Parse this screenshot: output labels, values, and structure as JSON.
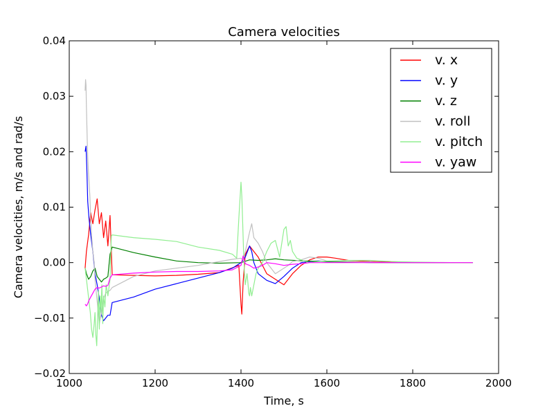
{
  "chart_data": {
    "type": "line",
    "title": "Camera velocities",
    "xlabel": "Time, s",
    "ylabel": "Camera velocities, m/s and rad/s",
    "xlim": [
      1000,
      2000
    ],
    "ylim": [
      -0.02,
      0.04
    ],
    "xticks": [
      1000,
      1200,
      1400,
      1600,
      1800,
      2000
    ],
    "xtick_labels": [
      "1000",
      "1200",
      "1400",
      "1600",
      "1800",
      "2000"
    ],
    "yticks": [
      -0.02,
      -0.01,
      0.0,
      0.01,
      0.02,
      0.03,
      0.04
    ],
    "ytick_labels": [
      "−0.02",
      "−0.01",
      "0.00",
      "0.01",
      "0.02",
      "0.03",
      "0.04"
    ],
    "grid": false,
    "legend_position": "top-right",
    "series": [
      {
        "name": "v. x",
        "color": "#ff0000",
        "x": [
          1037,
          1040,
          1045,
          1050,
          1055,
          1060,
          1065,
          1070,
          1075,
          1080,
          1085,
          1090,
          1095,
          1100,
          1150,
          1200,
          1250,
          1300,
          1350,
          1395,
          1400,
          1402,
          1405,
          1410,
          1420,
          1430,
          1440,
          1460,
          1480,
          1500,
          1520,
          1540,
          1560,
          1580,
          1600,
          1620,
          1650,
          1700,
          1750,
          1800,
          1850,
          1900,
          1940
        ],
        "y": [
          -0.001,
          0.002,
          0.005,
          0.009,
          0.007,
          0.0095,
          0.0115,
          0.007,
          0.009,
          0.0045,
          0.0075,
          0.003,
          0.0085,
          -0.0022,
          -0.0023,
          -0.0024,
          -0.0023,
          -0.0021,
          -0.0018,
          -0.0005,
          -0.0075,
          -0.0093,
          -0.0035,
          0.0015,
          0.003,
          0.002,
          0.001,
          -0.002,
          -0.003,
          -0.004,
          -0.002,
          -0.0005,
          0.0005,
          0.001,
          0.001,
          0.0008,
          0.0004,
          0.0002,
          0.0001,
          0.0,
          0.0,
          0.0,
          0.0
        ]
      },
      {
        "name": "v. y",
        "color": "#0000ff",
        "x": [
          1037,
          1039,
          1041,
          1043,
          1046,
          1050,
          1055,
          1060,
          1065,
          1070,
          1075,
          1080,
          1085,
          1090,
          1095,
          1100,
          1150,
          1200,
          1250,
          1300,
          1350,
          1380,
          1400,
          1410,
          1420,
          1425,
          1430,
          1440,
          1460,
          1480,
          1500,
          1520,
          1540,
          1560,
          1580,
          1600,
          1650,
          1700,
          1750,
          1800,
          1850,
          1900,
          1940
        ],
        "y": [
          0.02,
          0.021,
          0.017,
          0.011,
          0.008,
          0.005,
          0.002,
          -0.002,
          -0.004,
          -0.0065,
          -0.0095,
          -0.0105,
          -0.01,
          -0.0095,
          -0.0095,
          -0.0072,
          -0.0062,
          -0.0048,
          -0.0038,
          -0.0028,
          -0.0018,
          -0.001,
          0.0,
          0.001,
          0.003,
          0.002,
          0.0,
          -0.002,
          -0.0032,
          -0.0038,
          -0.0025,
          -0.001,
          0.0,
          0.0002,
          0.0003,
          0.0002,
          0.0001,
          0.0001,
          0.0,
          0.0,
          0.0,
          0.0,
          0.0
        ]
      },
      {
        "name": "v. z",
        "color": "#008000",
        "x": [
          1037,
          1040,
          1045,
          1050,
          1055,
          1060,
          1065,
          1070,
          1075,
          1080,
          1085,
          1090,
          1095,
          1100,
          1150,
          1200,
          1250,
          1300,
          1350,
          1400,
          1420,
          1440,
          1460,
          1480,
          1500,
          1550,
          1600,
          1650,
          1700,
          1800,
          1900,
          1940
        ],
        "y": [
          -0.001,
          -0.002,
          -0.003,
          -0.0025,
          -0.0015,
          -0.001,
          -0.0025,
          -0.003,
          -0.0035,
          -0.003,
          -0.0028,
          -0.0025,
          0.0015,
          0.0028,
          0.0018,
          0.001,
          0.0003,
          0.0,
          -0.0001,
          0.0,
          0.0005,
          0.0004,
          0.0005,
          0.0007,
          0.0005,
          0.0003,
          0.0002,
          0.0001,
          0.0,
          0.0,
          0.0,
          0.0
        ]
      },
      {
        "name": "v. roll",
        "color": "#c0c0c0",
        "x": [
          1037,
          1038,
          1039,
          1040,
          1041,
          1042,
          1043,
          1045,
          1048,
          1050,
          1052,
          1055,
          1058,
          1060,
          1065,
          1070,
          1075,
          1080,
          1085,
          1090,
          1095,
          1100,
          1150,
          1200,
          1250,
          1300,
          1350,
          1380,
          1400,
          1405,
          1410,
          1420,
          1425,
          1430,
          1435,
          1440,
          1450,
          1460,
          1480,
          1500,
          1510,
          1520,
          1540,
          1560,
          1580,
          1600,
          1650,
          1700,
          1750,
          1800,
          1850,
          1900,
          1940
        ],
        "y": [
          0.031,
          0.033,
          0.032,
          0.028,
          0.025,
          0.022,
          0.019,
          0.016,
          0.012,
          0.008,
          0.005,
          0.002,
          0.0,
          -0.003,
          -0.007,
          -0.011,
          -0.009,
          -0.0065,
          -0.0055,
          -0.0052,
          -0.005,
          -0.0045,
          -0.0025,
          -0.0015,
          -0.001,
          -0.0005,
          0.0002,
          0.0006,
          0.0008,
          0.0005,
          0.002,
          0.0055,
          0.007,
          0.0045,
          0.004,
          0.0035,
          0.002,
          0.0,
          -0.002,
          -0.001,
          -0.0005,
          0.0002,
          0.0005,
          0.001,
          0.0008,
          0.0003,
          0.0002,
          0.0001,
          0.0,
          0.0,
          0.0,
          0.0,
          0.0
        ]
      },
      {
        "name": "v. pitch",
        "color": "#90ee90",
        "x": [
          1037,
          1040,
          1043,
          1046,
          1049,
          1052,
          1055,
          1058,
          1060,
          1062,
          1064,
          1066,
          1068,
          1070,
          1072,
          1074,
          1076,
          1078,
          1080,
          1083,
          1086,
          1090,
          1095,
          1098,
          1100,
          1150,
          1200,
          1250,
          1300,
          1350,
          1380,
          1390,
          1395,
          1400,
          1402,
          1404,
          1406,
          1408,
          1410,
          1412,
          1414,
          1416,
          1418,
          1420,
          1422,
          1425,
          1430,
          1435,
          1440,
          1450,
          1460,
          1470,
          1480,
          1490,
          1500,
          1505,
          1510,
          1515,
          1520,
          1530,
          1540,
          1550,
          1560,
          1580,
          1600,
          1650,
          1700,
          1750,
          1800,
          1900,
          1940
        ],
        "y": [
          -0.001,
          -0.003,
          -0.005,
          -0.007,
          -0.009,
          -0.012,
          -0.0135,
          -0.011,
          -0.009,
          -0.013,
          -0.015,
          -0.01,
          -0.005,
          -0.012,
          -0.006,
          -0.009,
          -0.004,
          -0.011,
          -0.006,
          -0.008,
          -0.004,
          -0.006,
          -0.003,
          0.0048,
          0.005,
          0.0045,
          0.0042,
          0.0038,
          0.0028,
          0.0022,
          0.0015,
          0.0008,
          0.008,
          0.0145,
          0.012,
          0.007,
          0.002,
          -0.002,
          -0.004,
          -0.003,
          -0.002,
          -0.0035,
          -0.0055,
          -0.006,
          -0.0045,
          -0.006,
          -0.004,
          -0.002,
          -0.001,
          0.0,
          0.002,
          0.0035,
          0.004,
          0.001,
          0.006,
          0.0065,
          0.003,
          0.004,
          0.002,
          0.0008,
          0.0005,
          0.0002,
          0.0,
          0.0002,
          0.0003,
          0.0004,
          0.0004,
          0.0002,
          0.0001,
          0.0,
          0.0
        ]
      },
      {
        "name": "v. yaw",
        "color": "#ff00ff",
        "x": [
          1037,
          1040,
          1043,
          1046,
          1050,
          1055,
          1060,
          1065,
          1070,
          1075,
          1080,
          1085,
          1090,
          1095,
          1100,
          1150,
          1200,
          1250,
          1300,
          1350,
          1380,
          1400,
          1405,
          1410,
          1420,
          1430,
          1440,
          1450,
          1460,
          1480,
          1500,
          1520,
          1540,
          1560,
          1580,
          1600,
          1650,
          1700,
          1750,
          1800,
          1850,
          1900,
          1940
        ],
        "y": [
          -0.0075,
          -0.0078,
          -0.0074,
          -0.0068,
          -0.0062,
          -0.0055,
          -0.0048,
          -0.0045,
          -0.0046,
          -0.0044,
          -0.0042,
          -0.0043,
          -0.0041,
          -0.0028,
          -0.0022,
          -0.0019,
          -0.0017,
          -0.0016,
          -0.0016,
          -0.0015,
          -0.0013,
          -0.0005,
          0.0012,
          -0.0002,
          -0.0005,
          -0.001,
          -0.0008,
          -0.0005,
          0.0,
          -0.0002,
          -0.0005,
          -0.0003,
          -0.0002,
          0.0,
          0.0,
          0.0,
          0.0,
          0.0,
          0.0,
          0.0,
          0.0,
          0.0,
          0.0
        ]
      }
    ]
  }
}
